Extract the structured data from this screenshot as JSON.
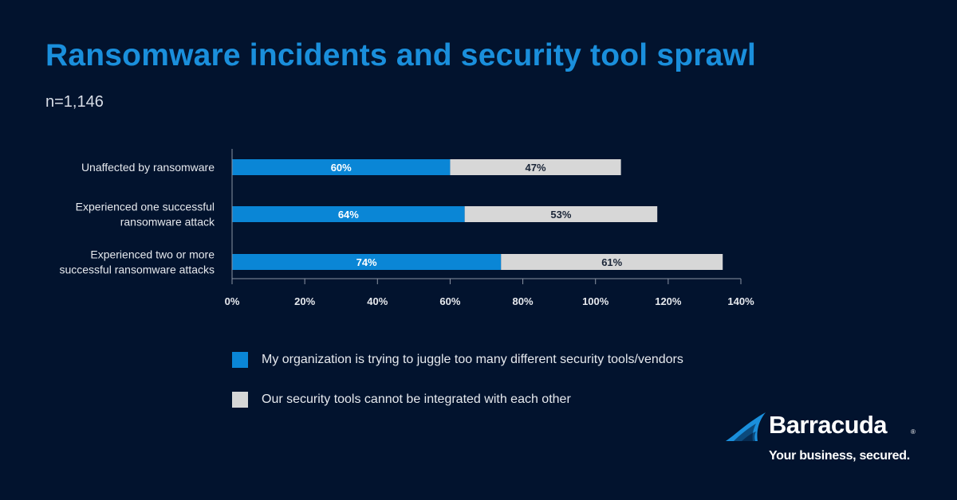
{
  "header": {
    "title": "Ransomware incidents and security tool sprawl",
    "subtitle": "n=1,146"
  },
  "colors": {
    "background": "#02132e",
    "accent": "#1a8fdc",
    "series_blue": "#0a86d6",
    "series_gray": "#d7d7d7"
  },
  "chart_data": {
    "type": "bar",
    "orientation": "horizontal",
    "stacked": true,
    "title": "Ransomware incidents and security tool sprawl",
    "subtitle": "n=1,146",
    "categories": [
      "Unaffected by ransomware",
      "Experienced one successful ransomware attack",
      "Experienced two or more successful ransomware attacks"
    ],
    "category_lines": [
      [
        "Unaffected by ransomware"
      ],
      [
        "Experienced one successful",
        "ransomware attack"
      ],
      [
        "Experienced two or more",
        "successful ransomware attacks"
      ]
    ],
    "series": [
      {
        "name": "My organization is trying to juggle too many different security tools/vendors",
        "values": [
          60,
          64,
          74
        ],
        "labels": [
          "60%",
          "64%",
          "74%"
        ],
        "color": "#0a86d6",
        "label_color": "#ffffff"
      },
      {
        "name": "Our security tools cannot be integrated with each other",
        "values": [
          47,
          53,
          61
        ],
        "labels": [
          "47%",
          "53%",
          "61%"
        ],
        "color": "#d7d7d7",
        "label_color": "#1b2638"
      }
    ],
    "xlim": [
      0,
      140
    ],
    "xticks": [
      0,
      20,
      40,
      60,
      80,
      100,
      120,
      140
    ],
    "xtick_labels": [
      "0%",
      "20%",
      "40%",
      "60%",
      "80%",
      "100%",
      "120%",
      "140%"
    ],
    "grid": false,
    "legend_position": "bottom"
  },
  "logo": {
    "brand": "Barracuda",
    "registered": "®",
    "tagline": "Your business, secured."
  }
}
